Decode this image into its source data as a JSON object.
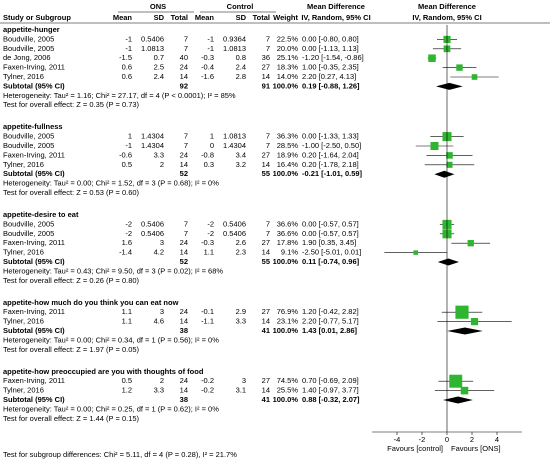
{
  "chart_data": {
    "type": "forest",
    "header": {
      "study": "Study or Subgroup",
      "group1": "ONS",
      "group2": "Control",
      "group1_cols": [
        "Mean",
        "SD",
        "Total"
      ],
      "group2_cols": [
        "Mean",
        "SD",
        "Total"
      ],
      "weight": "Weight",
      "table_title": "Mean Difference",
      "table_method": "IV, Random, 95% CI",
      "plot_title": "Mean Difference",
      "plot_method": "IV, Random, 95% CI"
    },
    "subgroups": [
      {
        "name": "appetite-hunger",
        "studies": [
          {
            "study": "Boudville, 2005",
            "m1": -1,
            "sd1": 0.5406,
            "n1": 7,
            "m2": -1,
            "sd2": 0.9364,
            "n2": 7,
            "weight": 22.5,
            "weight_label": "22.5%",
            "md": 0,
            "lo": -0.8,
            "hi": 0.8,
            "ci_label": "0.00 [-0.80, 0.80]"
          },
          {
            "study": "Boudville, 2005",
            "m1": -1,
            "sd1": 1.0813,
            "n1": 7,
            "m2": -1,
            "sd2": 1.0813,
            "n2": 7,
            "weight": 20.0,
            "weight_label": "20.0%",
            "md": 0,
            "lo": -1.13,
            "hi": 1.13,
            "ci_label": "0.00 [-1.13, 1.13]"
          },
          {
            "study": "de Jong, 2006",
            "m1": -1.5,
            "sd1": 0.7,
            "n1": 40,
            "m2": -0.3,
            "sd2": 0.8,
            "n2": 36,
            "weight": 25.1,
            "weight_label": "25.1%",
            "md": -1.2,
            "lo": -1.54,
            "hi": -0.86,
            "ci_label": "-1.20 [-1.54, -0.86]"
          },
          {
            "study": "Faxen-Irving, 2011",
            "m1": 0.6,
            "sd1": 2.5,
            "n1": 24,
            "m2": -0.4,
            "sd2": 2.4,
            "n2": 27,
            "weight": 18.3,
            "weight_label": "18.3%",
            "md": 1,
            "lo": -0.35,
            "hi": 2.35,
            "ci_label": "1.00 [-0.35, 2.35]"
          },
          {
            "study": "Tylner, 2016",
            "m1": 0.6,
            "sd1": 2.4,
            "n1": 14,
            "m2": -1.6,
            "sd2": 2.8,
            "n2": 14,
            "weight": 14.0,
            "weight_label": "14.0%",
            "md": 2.2,
            "lo": 0.27,
            "hi": 4.13,
            "ci_label": "2.20 [0.27, 4.13]"
          }
        ],
        "subtotal": {
          "label": "Subtotal (95% CI)",
          "n1": 92,
          "n2": 91,
          "weight_label": "100.0%",
          "md": 0.19,
          "lo": -0.88,
          "hi": 1.26,
          "ci_label": "0.19 [-0.88, 1.26]"
        },
        "heterogeneity": "Heterogeneity: Tau² = 1.16; Chi² = 27.17, df = 4 (P < 0.0001); I² = 85%",
        "overall": "Test for overall effect: Z = 0.35 (P = 0.73)"
      },
      {
        "name": "appetite-fullness",
        "studies": [
          {
            "study": "Boudville, 2005",
            "m1": 1,
            "sd1": 1.4304,
            "n1": 7,
            "m2": 1,
            "sd2": 1.0813,
            "n2": 7,
            "weight": 36.3,
            "weight_label": "36.3%",
            "md": 0,
            "lo": -1.33,
            "hi": 1.33,
            "ci_label": "0.00 [-1.33, 1.33]"
          },
          {
            "study": "Boudville, 2005",
            "m1": -1,
            "sd1": 1.4304,
            "n1": 7,
            "m2": 0,
            "sd2": 1.4304,
            "n2": 7,
            "weight": 28.5,
            "weight_label": "28.5%",
            "md": -1,
            "lo": -2.5,
            "hi": 0.5,
            "ci_label": "-1.00 [-2.50, 0.50]"
          },
          {
            "study": "Faxen-Irving, 2011",
            "m1": -0.6,
            "sd1": 3.3,
            "n1": 24,
            "m2": -0.8,
            "sd2": 3.4,
            "n2": 27,
            "weight": 18.9,
            "weight_label": "18.9%",
            "md": 0.2,
            "lo": -1.64,
            "hi": 2.04,
            "ci_label": "0.20 [-1.64, 2.04]"
          },
          {
            "study": "Tylner, 2016",
            "m1": 0.5,
            "sd1": 2,
            "n1": 14,
            "m2": 0.3,
            "sd2": 3.2,
            "n2": 14,
            "weight": 16.4,
            "weight_label": "16.4%",
            "md": 0.2,
            "lo": -1.78,
            "hi": 2.18,
            "ci_label": "0.20 [-1.78, 2.18]"
          }
        ],
        "subtotal": {
          "label": "Subtotal (95% CI)",
          "n1": 52,
          "n2": 55,
          "weight_label": "100.0%",
          "md": -0.21,
          "lo": -1.01,
          "hi": 0.59,
          "ci_label": "-0.21 [-1.01, 0.59]"
        },
        "heterogeneity": "Heterogeneity: Tau² = 0.00; Chi² = 1.52, df = 3 (P = 0.68); I² = 0%",
        "overall": "Test for overall effect: Z = 0.53 (P = 0.60)"
      },
      {
        "name": "appetite-desire to eat",
        "studies": [
          {
            "study": "Boudville, 2005",
            "m1": -2,
            "sd1": 0.5406,
            "n1": 7,
            "m2": -2,
            "sd2": 0.5406,
            "n2": 7,
            "weight": 36.6,
            "weight_label": "36.6%",
            "md": 0,
            "lo": -0.57,
            "hi": 0.57,
            "ci_label": "0.00 [-0.57, 0.57]"
          },
          {
            "study": "Boudville, 2005",
            "m1": -2,
            "sd1": 0.5406,
            "n1": 7,
            "m2": -2,
            "sd2": 0.5406,
            "n2": 7,
            "weight": 36.6,
            "weight_label": "36.6%",
            "md": 0,
            "lo": -0.57,
            "hi": 0.57,
            "ci_label": "0.00 [-0.57, 0.57]"
          },
          {
            "study": "Faxen-Irving, 2011",
            "m1": 1.6,
            "sd1": 3,
            "n1": 24,
            "m2": -0.3,
            "sd2": 2.6,
            "n2": 27,
            "weight": 17.8,
            "weight_label": "17.8%",
            "md": 1.9,
            "lo": 0.35,
            "hi": 3.45,
            "ci_label": "1.90 [0.35, 3.45]"
          },
          {
            "study": "Tylner, 2016",
            "m1": -1.4,
            "sd1": 4.2,
            "n1": 14,
            "m2": 1.1,
            "sd2": 2.3,
            "n2": 14,
            "weight": 9.1,
            "weight_label": "9.1%",
            "md": -2.5,
            "lo": -5.01,
            "hi": 0.01,
            "ci_label": "-2.50 [-5.01, 0.01]"
          }
        ],
        "subtotal": {
          "label": "Subtotal (95% CI)",
          "n1": 52,
          "n2": 55,
          "weight_label": "100.0%",
          "md": 0.11,
          "lo": -0.74,
          "hi": 0.96,
          "ci_label": "0.11 [-0.74, 0.96]"
        },
        "heterogeneity": "Heterogeneity: Tau² = 0.43; Chi² = 9.50, df = 3 (P = 0.02); I² = 68%",
        "overall": "Test for overall effect: Z = 0.26 (P = 0.80)"
      },
      {
        "name": "appetite-how much do you think you can eat now",
        "studies": [
          {
            "study": "Faxen-Irving, 2011",
            "m1": 1.1,
            "sd1": 3,
            "n1": 24,
            "m2": -0.1,
            "sd2": 2.9,
            "n2": 27,
            "weight": 76.9,
            "weight_label": "76.9%",
            "md": 1.2,
            "lo": -0.42,
            "hi": 2.82,
            "ci_label": "1.20 [-0.42, 2.82]"
          },
          {
            "study": "Tylner, 2016",
            "m1": 1.1,
            "sd1": 4.6,
            "n1": 14,
            "m2": -1.1,
            "sd2": 3.3,
            "n2": 14,
            "weight": 23.1,
            "weight_label": "23.1%",
            "md": 2.2,
            "lo": -0.77,
            "hi": 5.17,
            "ci_label": "2.20 [-0.77, 5.17]"
          }
        ],
        "subtotal": {
          "label": "Subtotal (95% CI)",
          "n1": 38,
          "n2": 41,
          "weight_label": "100.0%",
          "md": 1.43,
          "lo": 0.01,
          "hi": 2.86,
          "ci_label": "1.43 [0.01, 2.86]"
        },
        "heterogeneity": "Heterogeneity: Tau² = 0.00; Chi² = 0.34, df = 1 (P = 0.56); I² = 0%",
        "overall": "Test for overall effect: Z = 1.97 (P = 0.05)"
      },
      {
        "name": "appetite-how preoccupied are you with thoughts of food",
        "studies": [
          {
            "study": "Faxen-Irving, 2011",
            "m1": 0.5,
            "sd1": 2,
            "n1": 24,
            "m2": -0.2,
            "sd2": 3,
            "n2": 27,
            "weight": 74.5,
            "weight_label": "74.5%",
            "md": 0.7,
            "lo": -0.69,
            "hi": 2.09,
            "ci_label": "0.70 [-0.69, 2.09]"
          },
          {
            "study": "Tylner, 2016",
            "m1": 1.2,
            "sd1": 3.3,
            "n1": 14,
            "m2": -0.2,
            "sd2": 3.1,
            "n2": 14,
            "weight": 25.5,
            "weight_label": "25.5%",
            "md": 1.4,
            "lo": -0.97,
            "hi": 3.77,
            "ci_label": "1.40 [-0.97, 3.77]"
          }
        ],
        "subtotal": {
          "label": "Subtotal (95% CI)",
          "n1": 38,
          "n2": 41,
          "weight_label": "100.0%",
          "md": 0.88,
          "lo": -0.32,
          "hi": 2.07,
          "ci_label": "0.88 [-0.32, 2.07]"
        },
        "heterogeneity": "Heterogeneity: Tau² = 0.00; Chi² = 0.25, df = 1 (P = 0.62); I² = 0%",
        "overall": "Test for overall effect: Z = 1.44 (P = 0.15)"
      }
    ],
    "xlim": [
      -6,
      6
    ],
    "xticks": [
      -4,
      -2,
      0,
      2,
      4
    ],
    "favours_left": "Favours [control]",
    "favours_right": "Favours [ONS]",
    "subgroup_test": "Test for subgroup differences: Chi² = 5.11, df = 4 (P = 0.28), I² = 21.7%",
    "marker_color": "#2fb52f",
    "summary_color": "#000000"
  }
}
